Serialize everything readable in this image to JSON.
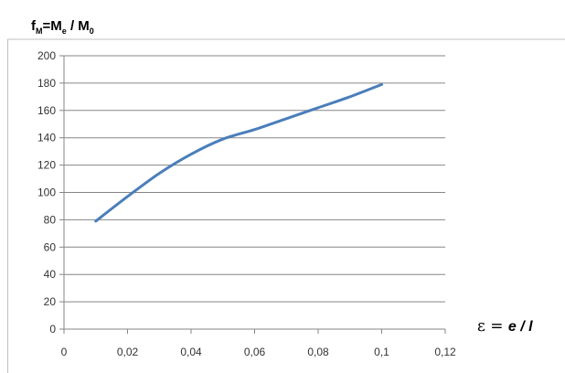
{
  "chart_data": {
    "type": "line",
    "ylabel": {
      "f": "f",
      "f_sub": "M",
      "eq": "=M",
      "me_sub": "e",
      "slash": " / M",
      "m0_sub": "0"
    },
    "xlabel": {
      "eps": "ε = ",
      "rest": "e / l"
    },
    "x_ticks": [
      "0",
      "0,02",
      "0,04",
      "0,06",
      "0,08",
      "0,1",
      "0,12"
    ],
    "y_ticks": [
      "0",
      "20",
      "40",
      "60",
      "80",
      "100",
      "120",
      "140",
      "160",
      "180",
      "200"
    ],
    "xlim": [
      0,
      0.12
    ],
    "ylim": [
      0,
      200
    ],
    "grid": "horizontal",
    "legend": "none",
    "series": [
      {
        "color": "#4a7ebb",
        "x": [
          0.01,
          0.02,
          0.03,
          0.04,
          0.05,
          0.06,
          0.07,
          0.08,
          0.09,
          0.1
        ],
        "y": [
          79,
          97,
          114,
          128,
          139,
          146,
          154,
          162,
          170,
          179
        ]
      }
    ]
  }
}
